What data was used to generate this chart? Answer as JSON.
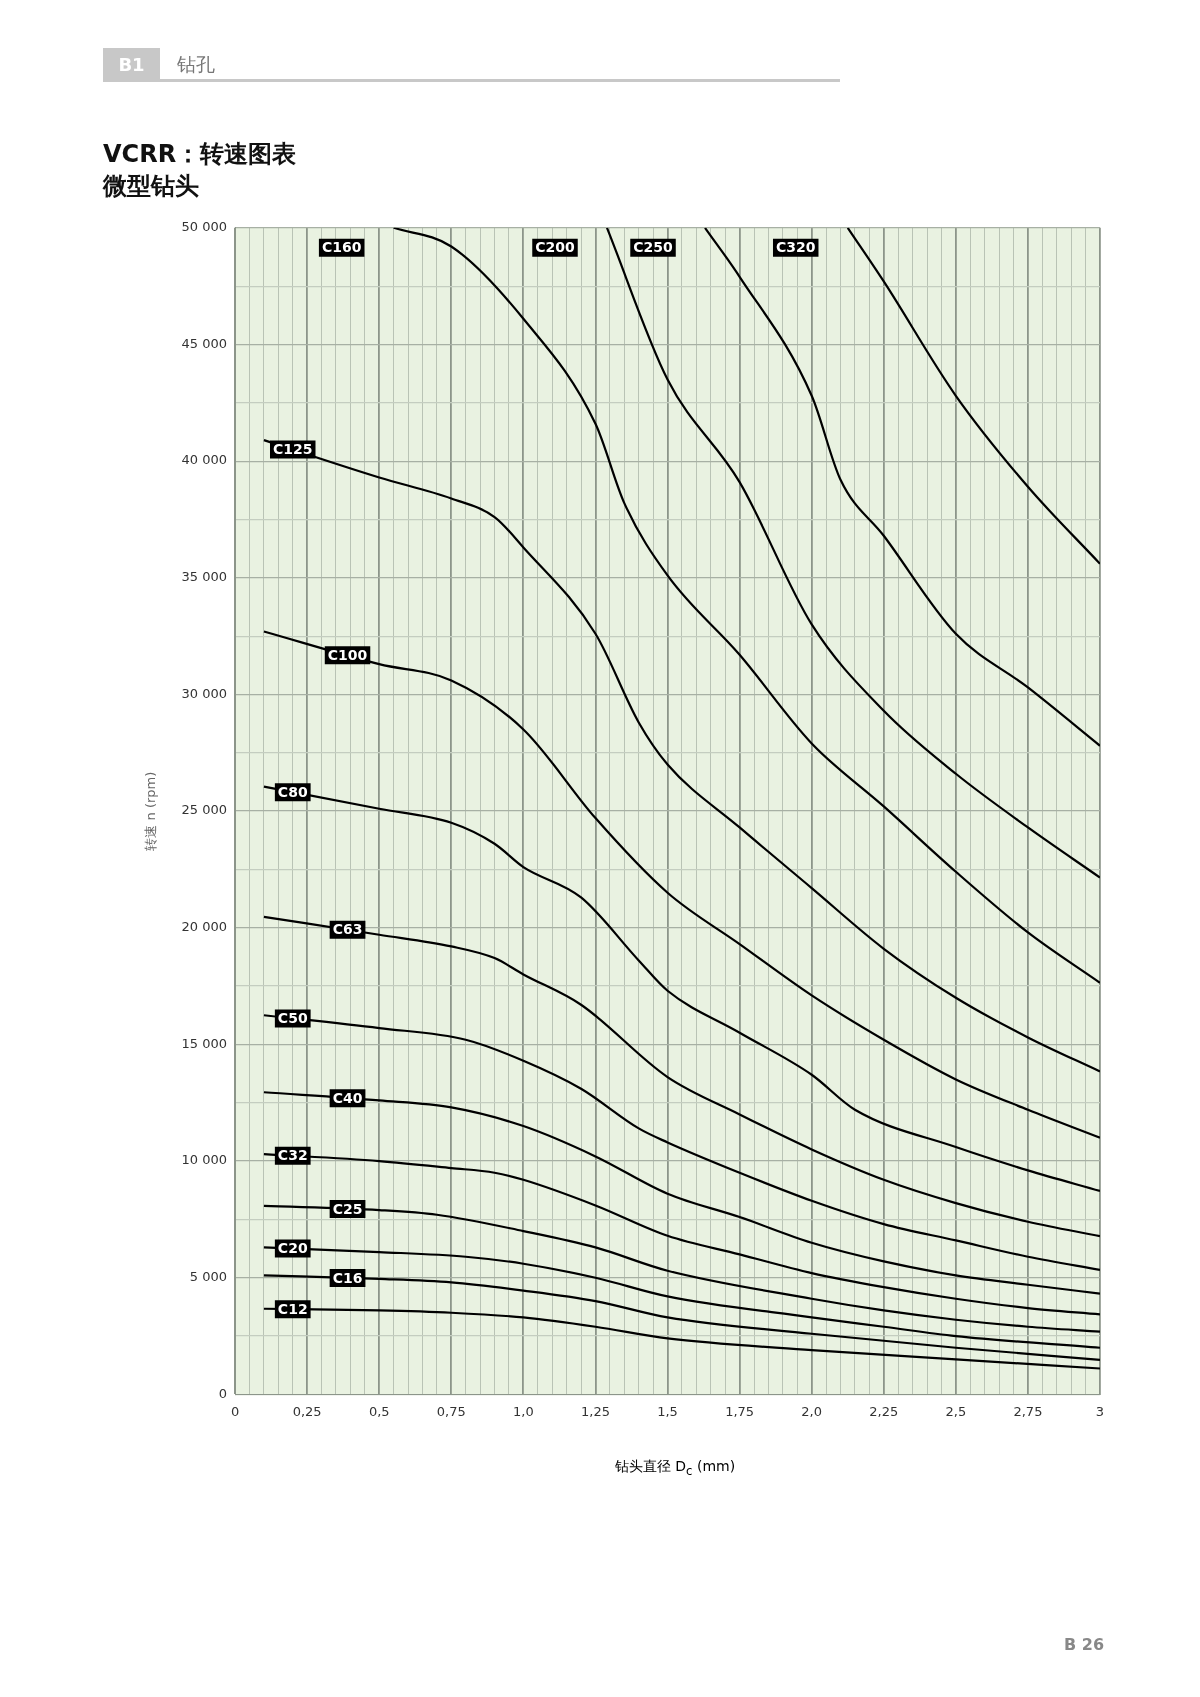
{
  "chart_data": {
    "type": "line",
    "title": "VCRR：转速图表",
    "subtitle": "微型钻头",
    "xlabel": "钻头直径 D$_{c}$ (mm)",
    "ylabel": "转速 n (rpm)",
    "annotations": [
      "B1",
      "钻孔",
      "B 26"
    ],
    "xlim": [
      0,
      3
    ],
    "ylim": [
      0,
      50000
    ],
    "xticks": [
      {
        "value": 0,
        "label": "0"
      },
      {
        "value": 0.05,
        "label": null
      },
      {
        "value": 0.1,
        "label": null
      },
      {
        "value": 0.15,
        "label": null
      },
      {
        "value": 0.2,
        "label": null
      },
      {
        "value": 0.25,
        "label": "0,25"
      },
      {
        "value": 0.3,
        "label": null
      },
      {
        "value": 0.35,
        "label": null
      },
      {
        "value": 0.4,
        "label": null
      },
      {
        "value": 0.45,
        "label": null
      },
      {
        "value": 0.5,
        "label": "0,5"
      },
      {
        "value": 0.55,
        "label": null
      },
      {
        "value": 0.6,
        "label": null
      },
      {
        "value": 0.65,
        "label": null
      },
      {
        "value": 0.7,
        "label": null
      },
      {
        "value": 0.75,
        "label": "0,75"
      },
      {
        "value": 0.8,
        "label": null
      },
      {
        "value": 0.85,
        "label": null
      },
      {
        "value": 0.9,
        "label": null
      },
      {
        "value": 0.95,
        "label": null
      },
      {
        "value": 1,
        "label": "1,0"
      },
      {
        "value": 1.05,
        "label": null
      },
      {
        "value": 1.1,
        "label": null
      },
      {
        "value": 1.15,
        "label": null
      },
      {
        "value": 1.2,
        "label": null
      },
      {
        "value": 1.25,
        "label": "1,25"
      },
      {
        "value": 1.3,
        "label": null
      },
      {
        "value": 1.35,
        "label": null
      },
      {
        "value": 1.4,
        "label": null
      },
      {
        "value": 1.45,
        "label": null
      },
      {
        "value": 1.5,
        "label": "1,5"
      },
      {
        "value": 1.55,
        "label": null
      },
      {
        "value": 1.6,
        "label": null
      },
      {
        "value": 1.65,
        "label": null
      },
      {
        "value": 1.7,
        "label": null
      },
      {
        "value": 1.75,
        "label": "1,75"
      },
      {
        "value": 1.8,
        "label": null
      },
      {
        "value": 1.85,
        "label": null
      },
      {
        "value": 1.9,
        "label": null
      },
      {
        "value": 1.95,
        "label": null
      },
      {
        "value": 2,
        "label": "2,0"
      },
      {
        "value": 2.05,
        "label": null
      },
      {
        "value": 2.1,
        "label": null
      },
      {
        "value": 2.15,
        "label": null
      },
      {
        "value": 2.2,
        "label": null
      },
      {
        "value": 2.25,
        "label": "2,25"
      },
      {
        "value": 2.3,
        "label": null
      },
      {
        "value": 2.35,
        "label": null
      },
      {
        "value": 2.4,
        "label": null
      },
      {
        "value": 2.45,
        "label": null
      },
      {
        "value": 2.5,
        "label": "2,5"
      },
      {
        "value": 2.55,
        "label": null
      },
      {
        "value": 2.6,
        "label": null
      },
      {
        "value": 2.65,
        "label": null
      },
      {
        "value": 2.7,
        "label": null
      },
      {
        "value": 2.75,
        "label": "2,75"
      },
      {
        "value": 2.8,
        "label": null
      },
      {
        "value": 2.85,
        "label": null
      },
      {
        "value": 2.9,
        "label": null
      },
      {
        "value": 2.95,
        "label": null
      },
      {
        "value": 3,
        "label": "3"
      }
    ],
    "yticks": [
      0,
      {
        "value": 2500,
        "label": null
      },
      {
        "value": 5000,
        "label": "5 000"
      },
      {
        "value": 7500,
        "label": null
      },
      {
        "value": 10000,
        "label": "10 000"
      },
      {
        "value": 12500,
        "label": null
      },
      {
        "value": 15000,
        "label": "15 000"
      },
      {
        "value": 17500,
        "label": null
      },
      {
        "value": 20000,
        "label": "20 000"
      },
      {
        "value": 22500,
        "label": null
      },
      {
        "value": 25000,
        "label": "25 000"
      },
      {
        "value": 27500,
        "label": null
      },
      {
        "value": 30000,
        "label": "30 000"
      },
      {
        "value": 32500,
        "label": null
      },
      {
        "value": 35000,
        "label": "35 000"
      },
      {
        "value": 37500,
        "label": null
      },
      {
        "value": 40000,
        "label": "40 000"
      },
      {
        "value": 42500,
        "label": null
      },
      {
        "value": 45000,
        "label": "45 000"
      },
      {
        "value": 47500,
        "label": null
      },
      {
        "value": 50000,
        "label": "50 000"
      }
    ],
    "grid": true,
    "legend": false,
    "marker": "none",
    "line_style": "solid",
    "series": [
      {
        "name": "C12",
        "color": "#000000",
        "x": [
          0.1,
          0.5,
          0.75,
          1,
          1.25,
          1.5,
          2,
          2.5,
          3
        ],
        "values": [
          3670,
          3600,
          3500,
          3300,
          2900,
          2400,
          1900,
          1500,
          1110
        ]
      },
      {
        "name": "C16",
        "color": "#000000",
        "x": [
          0.1,
          0.5,
          0.75,
          1,
          1.25,
          1.5,
          2,
          2.5,
          3
        ],
        "values": [
          5100,
          4950,
          4800,
          4450,
          4000,
          3300,
          2600,
          2000,
          1480
        ]
      },
      {
        "name": "C20",
        "color": "#000000",
        "x": [
          0.1,
          0.5,
          0.8,
          1,
          1.25,
          1.5,
          2,
          2.25,
          2.5,
          3
        ],
        "values": [
          6300,
          6100,
          5900,
          5600,
          5000,
          4200,
          3300,
          2900,
          2500,
          2000
        ]
      },
      {
        "name": "C25",
        "color": "#000000",
        "x": [
          0.1,
          0.5,
          0.7,
          1,
          1.25,
          1.5,
          2,
          2.25,
          2.5,
          2.75,
          3
        ],
        "values": [
          8080,
          7900,
          7700,
          7000,
          6300,
          5300,
          4100,
          3600,
          3200,
          2900,
          2690
        ]
      },
      {
        "name": "C32",
        "color": "#000000",
        "x": [
          0.1,
          0.5,
          0.75,
          0.9,
          1,
          1.25,
          1.5,
          1.75,
          2,
          2.25,
          2.5,
          2.75,
          3
        ],
        "values": [
          10300,
          10000,
          9700,
          9500,
          9200,
          8100,
          6800,
          6000,
          5200,
          4600,
          4100,
          3700,
          3430
        ]
      },
      {
        "name": "C40",
        "color": "#000000",
        "x": [
          0.1,
          0.5,
          0.75,
          1,
          1.25,
          1.5,
          1.75,
          2,
          2.25,
          2.5,
          2.75,
          3
        ],
        "values": [
          12950,
          12600,
          12300,
          11500,
          10200,
          8600,
          7600,
          6500,
          5700,
          5100,
          4700,
          4320
        ]
      },
      {
        "name": "C50",
        "color": "#000000",
        "x": [
          0.1,
          0.5,
          0.8,
          1,
          1.2,
          1.4,
          1.5,
          1.75,
          2,
          2.25,
          2.5,
          2.75,
          3
        ],
        "values": [
          16250,
          15700,
          15200,
          14300,
          13100,
          11400,
          10800,
          9500,
          8300,
          7300,
          6600,
          5900,
          5340
        ]
      },
      {
        "name": "C63",
        "color": "#000000",
        "x": [
          0.1,
          0.5,
          0.75,
          0.9,
          1,
          1.2,
          1.5,
          1.75,
          2,
          2.25,
          2.5,
          2.75,
          3
        ],
        "values": [
          20470,
          19700,
          19200,
          18700,
          18000,
          16700,
          13600,
          12000,
          10500,
          9200,
          8200,
          7400,
          6780
        ]
      },
      {
        "name": "C80",
        "color": "#000000",
        "x": [
          0.1,
          0.5,
          0.75,
          0.9,
          1,
          1.2,
          1.4,
          1.5,
          1.75,
          2,
          2.15,
          2.5,
          2.75,
          3
        ],
        "values": [
          26050,
          25100,
          24500,
          23600,
          22600,
          21300,
          18600,
          17300,
          15500,
          13700,
          12200,
          10600,
          9600,
          8720
        ]
      },
      {
        "name": "C100",
        "color": "#000000",
        "x": [
          0.1,
          0.5,
          0.75,
          1,
          1.25,
          1.5,
          1.75,
          2,
          2.25,
          2.5,
          2.75,
          3
        ],
        "values": [
          32700,
          31300,
          30600,
          28500,
          24700,
          21500,
          19300,
          17100,
          15200,
          13500,
          12200,
          11000
        ]
      },
      {
        "name": "C125",
        "color": "#000000",
        "x": [
          0.1,
          0.5,
          0.75,
          0.9,
          1,
          1.25,
          1.4,
          1.5,
          1.75,
          2,
          2.25,
          2.5,
          2.75,
          3
        ],
        "values": [
          40900,
          39300,
          38400,
          37600,
          36300,
          32600,
          28800,
          27000,
          24300,
          21700,
          19100,
          17000,
          15300,
          13840
        ]
      },
      {
        "name": "C160",
        "color": "#000000",
        "x": [
          0.55,
          0.75,
          1,
          1.25,
          1.35,
          1.5,
          1.75,
          2,
          2.25,
          2.5,
          2.75,
          3
        ],
        "values": [
          50000,
          49200,
          46100,
          41600,
          38200,
          35100,
          31700,
          27900,
          25200,
          22400,
          19800,
          17640
        ]
      },
      {
        "name": "C200",
        "color": "#000000",
        "x": [
          1.29,
          1.5,
          1.75,
          2,
          2.25,
          2.5,
          2.75,
          3
        ],
        "values": [
          50000,
          43500,
          39100,
          33000,
          29300,
          26600,
          24300,
          22150
        ]
      },
      {
        "name": "C250",
        "color": "#000000",
        "x": [
          1.63,
          1.75,
          2,
          2.1,
          2.25,
          2.5,
          2.75,
          3
        ],
        "values": [
          50000,
          47900,
          42800,
          39200,
          36800,
          32600,
          30300,
          27800
        ]
      },
      {
        "name": "C320",
        "color": "#000000",
        "x": [
          2.125,
          2.25,
          2.5,
          2.75,
          3
        ],
        "values": [
          50000,
          47700,
          42800,
          38900,
          35600
        ]
      }
    ]
  }
}
